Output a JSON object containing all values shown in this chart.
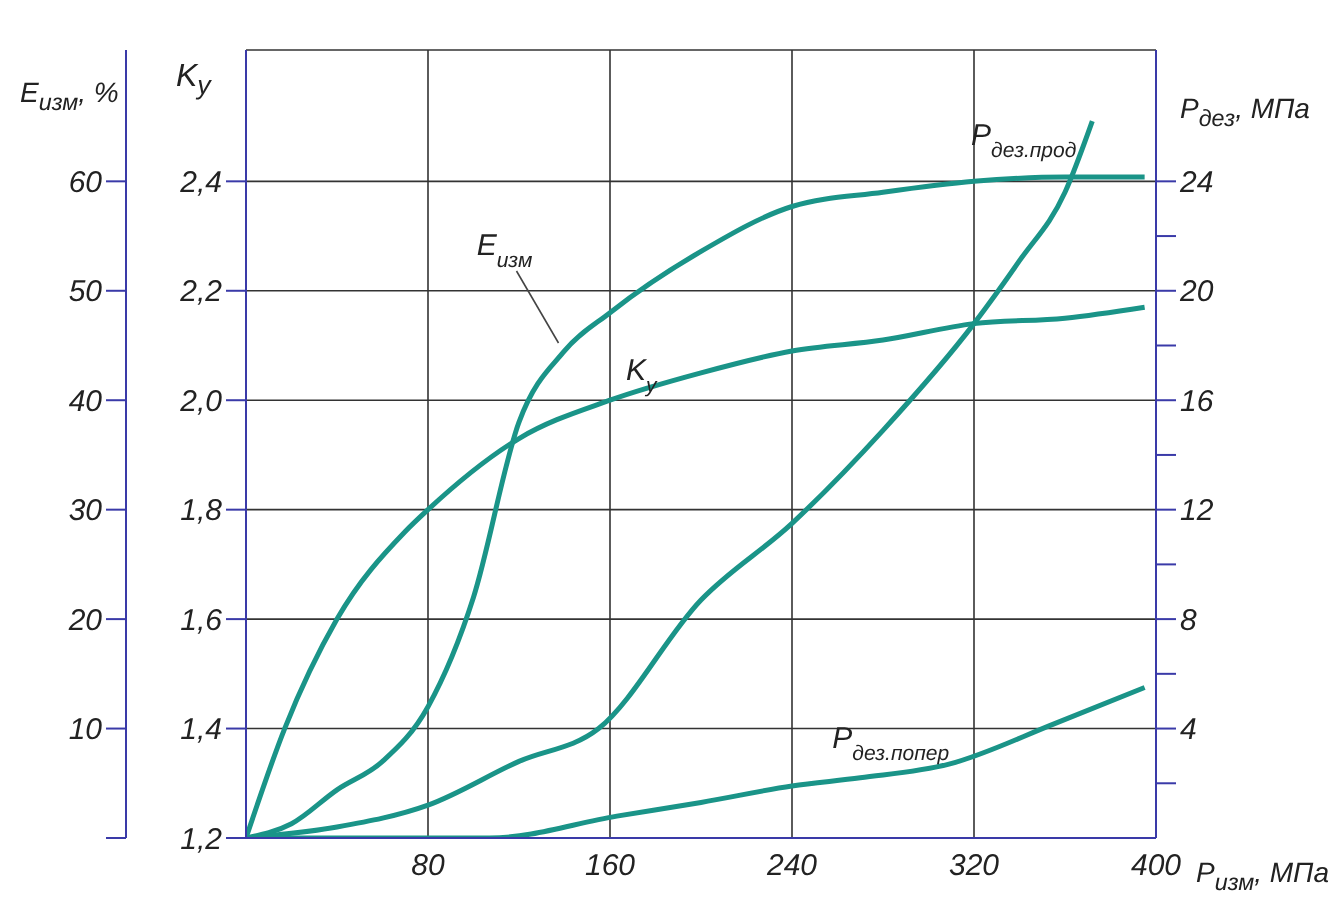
{
  "chart_data": {
    "type": "line",
    "xlabel": "P$_{изм}$, МПа",
    "ylabel": "K$_{у}$",
    "y2label": "E$_{изм}$, %",
    "y3label": "P$_{дез}$, МПа",
    "xlim": [
      0,
      400
    ],
    "xticks": [
      80,
      160,
      240,
      320,
      400
    ],
    "ylim": [
      1.2,
      2.64
    ],
    "yticks": [
      {
        "value": 1.2,
        "label": "1,2"
      },
      {
        "value": 1.4,
        "label": "1,4"
      },
      {
        "value": 1.6,
        "label": "1,6"
      },
      {
        "value": 1.8,
        "label": "1,8"
      },
      {
        "value": 2.0,
        "label": "2,0"
      },
      {
        "value": 2.2,
        "label": "2,2"
      },
      {
        "value": 2.4,
        "label": "2,4"
      }
    ],
    "y2lim": [
      0,
      72
    ],
    "y2ticks": [
      {
        "value": 0,
        "label": null
      },
      10,
      20,
      30,
      40,
      50,
      60
    ],
    "y3lim": [
      0,
      28.8
    ],
    "y3ticks": [
      {
        "value": 2,
        "label": null
      },
      4,
      {
        "value": 6,
        "label": null
      },
      8,
      {
        "value": 10,
        "label": null
      },
      12,
      {
        "value": 14,
        "label": null
      },
      16,
      {
        "value": 18,
        "label": null
      },
      20,
      {
        "value": 22,
        "label": null
      },
      24
    ],
    "grid": true,
    "marker": "none",
    "line_style": "solid",
    "series": [
      {
        "name": "E$_{изм}$",
        "axis": "y2",
        "color": "#1a9488",
        "x": [
          0,
          20,
          40,
          60,
          80,
          100,
          120,
          140,
          160,
          200,
          240,
          280,
          320,
          360,
          395
        ],
        "values": [
          0,
          1.3,
          4.4,
          7,
          12,
          22,
          38,
          44.5,
          48,
          53.6,
          57.7,
          59,
          60,
          60.4,
          60.4
        ]
      },
      {
        "name": "K$_{у}$",
        "axis": "y",
        "color": "#1a9488",
        "x": [
          0,
          17,
          40,
          70,
          80,
          120,
          160,
          200,
          240,
          280,
          320,
          360,
          395
        ],
        "values": [
          1.2,
          1.4,
          1.6,
          1.76,
          1.8,
          1.93,
          2.0,
          2.05,
          2.09,
          2.11,
          2.14,
          2.15,
          2.17
        ]
      },
      {
        "name": "P$_{дез.прод}$",
        "axis": "y3",
        "color": "#1a9488",
        "x": [
          0,
          40,
          80,
          120,
          155,
          200,
          240,
          280,
          320,
          340,
          360,
          372
        ],
        "values": [
          0,
          0.4,
          1.2,
          2.8,
          4,
          8.7,
          11.5,
          14.9,
          18.8,
          21.1,
          23.6,
          26.2
        ]
      },
      {
        "name": "P$_{дез.попер}$",
        "axis": "y3",
        "color": "#1a9488",
        "x": [
          0,
          107,
          163,
          200,
          240,
          270,
          309,
          356,
          395
        ],
        "values": [
          0,
          0,
          0.8,
          1.3,
          1.9,
          2.2,
          2.7,
          4.2,
          5.5
        ]
      }
    ]
  }
}
